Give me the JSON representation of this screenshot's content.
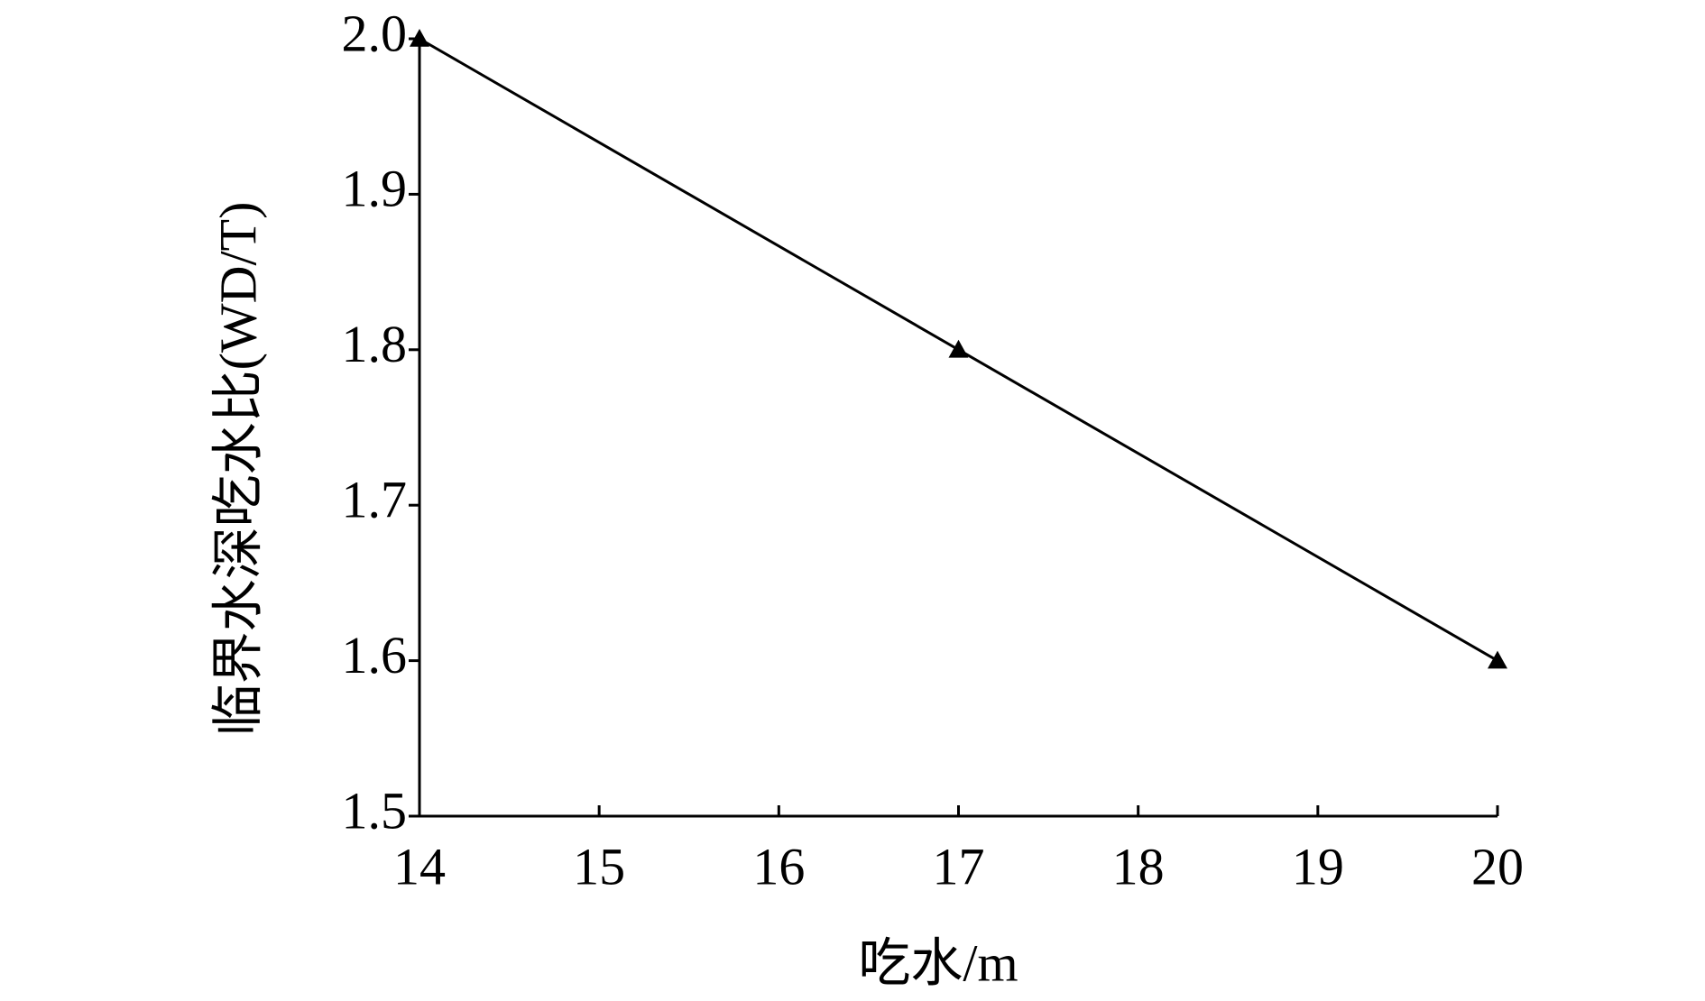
{
  "chart_data": {
    "type": "line",
    "x_label": "吃水/m",
    "y_label": "临界水深吃水比(WD/T)",
    "x": [
      14,
      17,
      20
    ],
    "series": [
      {
        "color": "#000000",
        "marker": "triangle",
        "values": [
          2.0,
          1.8,
          1.6
        ]
      }
    ],
    "xlim": [
      14,
      20
    ],
    "xticks": [
      14,
      15,
      16,
      17,
      18,
      19,
      20
    ],
    "ylim": [
      1.5,
      2.0
    ],
    "yticks": [
      1.5,
      1.6,
      1.7,
      1.8,
      1.9,
      {
        "value": 2.0,
        "label": "2.0"
      }
    ],
    "grid": false
  }
}
